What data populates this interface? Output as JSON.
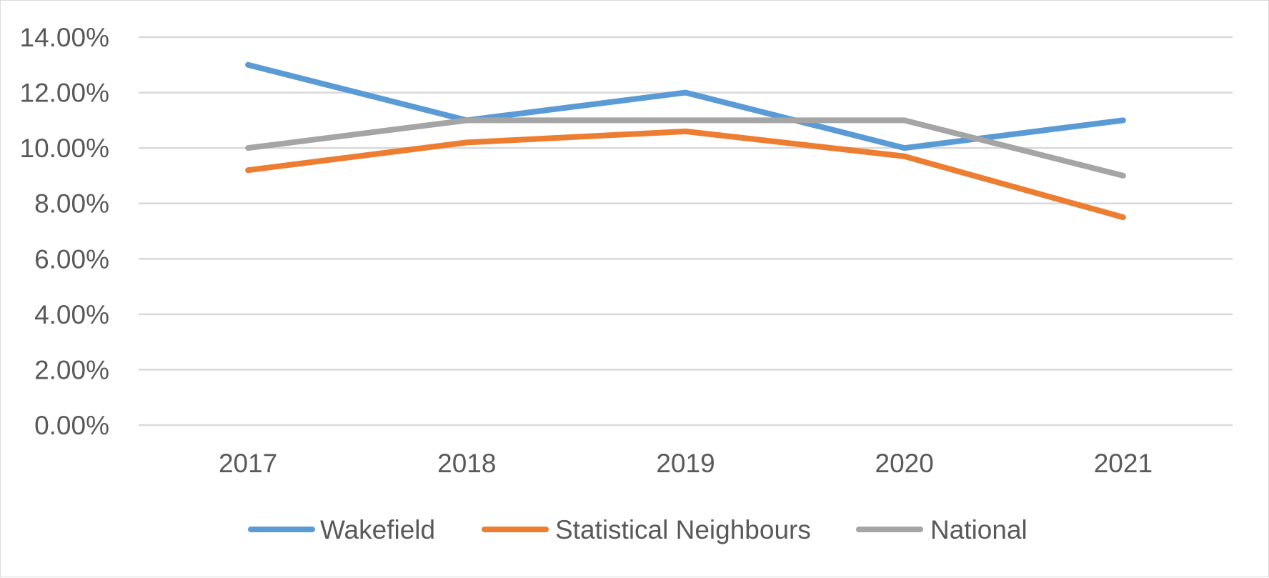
{
  "chart_data": {
    "type": "line",
    "title": "",
    "xlabel": "",
    "ylabel": "",
    "categories": [
      "2017",
      "2018",
      "2019",
      "2020",
      "2021"
    ],
    "ylim": [
      0,
      14
    ],
    "yticks": [
      0,
      2,
      4,
      6,
      8,
      10,
      12,
      14
    ],
    "ytick_labels": [
      "0.00%",
      "2.00%",
      "4.00%",
      "6.00%",
      "8.00%",
      "10.00%",
      "12.00%",
      "14.00%"
    ],
    "grid": true,
    "legend_position": "bottom",
    "series": [
      {
        "name": "Wakefield",
        "color": "#5b9bd5",
        "values": [
          13.0,
          11.0,
          12.0,
          10.0,
          11.0
        ]
      },
      {
        "name": "Statistical Neighbours",
        "color": "#ed7d31",
        "values": [
          9.2,
          10.2,
          10.6,
          9.7,
          7.5
        ]
      },
      {
        "name": "National",
        "color": "#a5a5a5",
        "values": [
          10.0,
          11.0,
          11.0,
          11.0,
          9.0
        ]
      }
    ]
  }
}
